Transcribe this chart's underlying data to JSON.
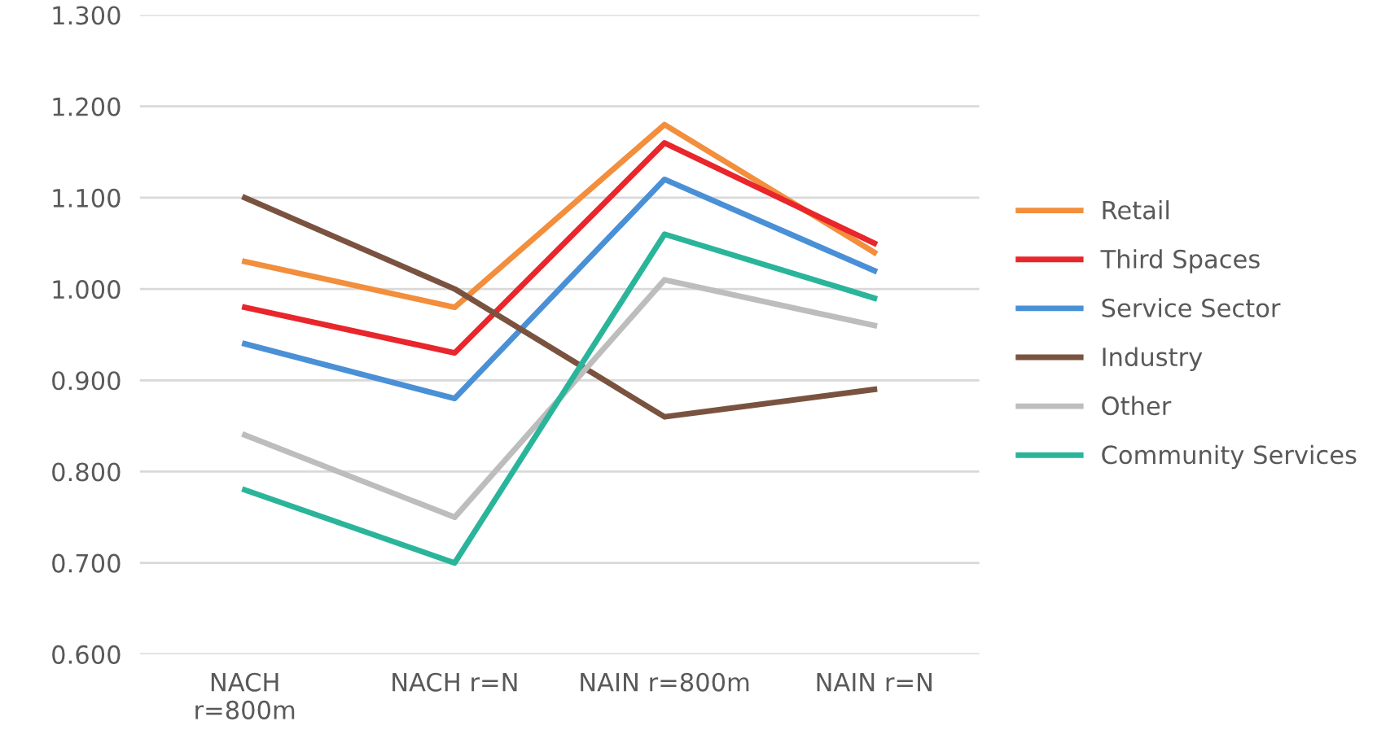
{
  "chart_data": {
    "type": "line",
    "categories": [
      "NACH\nr=800m",
      "NACH r=N",
      "NAIN r=800m",
      "NAIN r=N"
    ],
    "series": [
      {
        "name": "Retail",
        "color": "#f28e3c",
        "values": [
          1.03,
          0.98,
          1.18,
          1.04
        ]
      },
      {
        "name": "Third Spaces",
        "color": "#e8262b",
        "values": [
          0.98,
          0.93,
          1.16,
          1.05
        ]
      },
      {
        "name": "Service Sector",
        "color": "#4a90d6",
        "values": [
          0.94,
          0.88,
          1.12,
          1.02
        ]
      },
      {
        "name": "Industry",
        "color": "#7a5340",
        "values": [
          1.1,
          1.0,
          0.86,
          0.89
        ]
      },
      {
        "name": "Other",
        "color": "#bdbdbd",
        "values": [
          0.84,
          0.75,
          1.01,
          0.96
        ]
      },
      {
        "name": "Community Services",
        "color": "#2ab59a",
        "values": [
          0.78,
          0.7,
          1.06,
          0.99
        ]
      }
    ],
    "ylim": [
      0.6,
      1.3
    ],
    "yticks": [
      {
        "value": 0.6,
        "label": "0.600"
      },
      {
        "value": 0.7,
        "label": "0.700"
      },
      {
        "value": 0.8,
        "label": "0.800"
      },
      {
        "value": 0.9,
        "label": "0.900"
      },
      {
        "value": 1.0,
        "label": "1.000"
      },
      {
        "value": 1.1,
        "label": "1.100"
      },
      {
        "value": 1.2,
        "label": "1.200"
      },
      {
        "value": 1.3,
        "label": "1.300"
      }
    ],
    "grid": "y",
    "legend": "right",
    "marker": "none",
    "line_style": "solid"
  }
}
